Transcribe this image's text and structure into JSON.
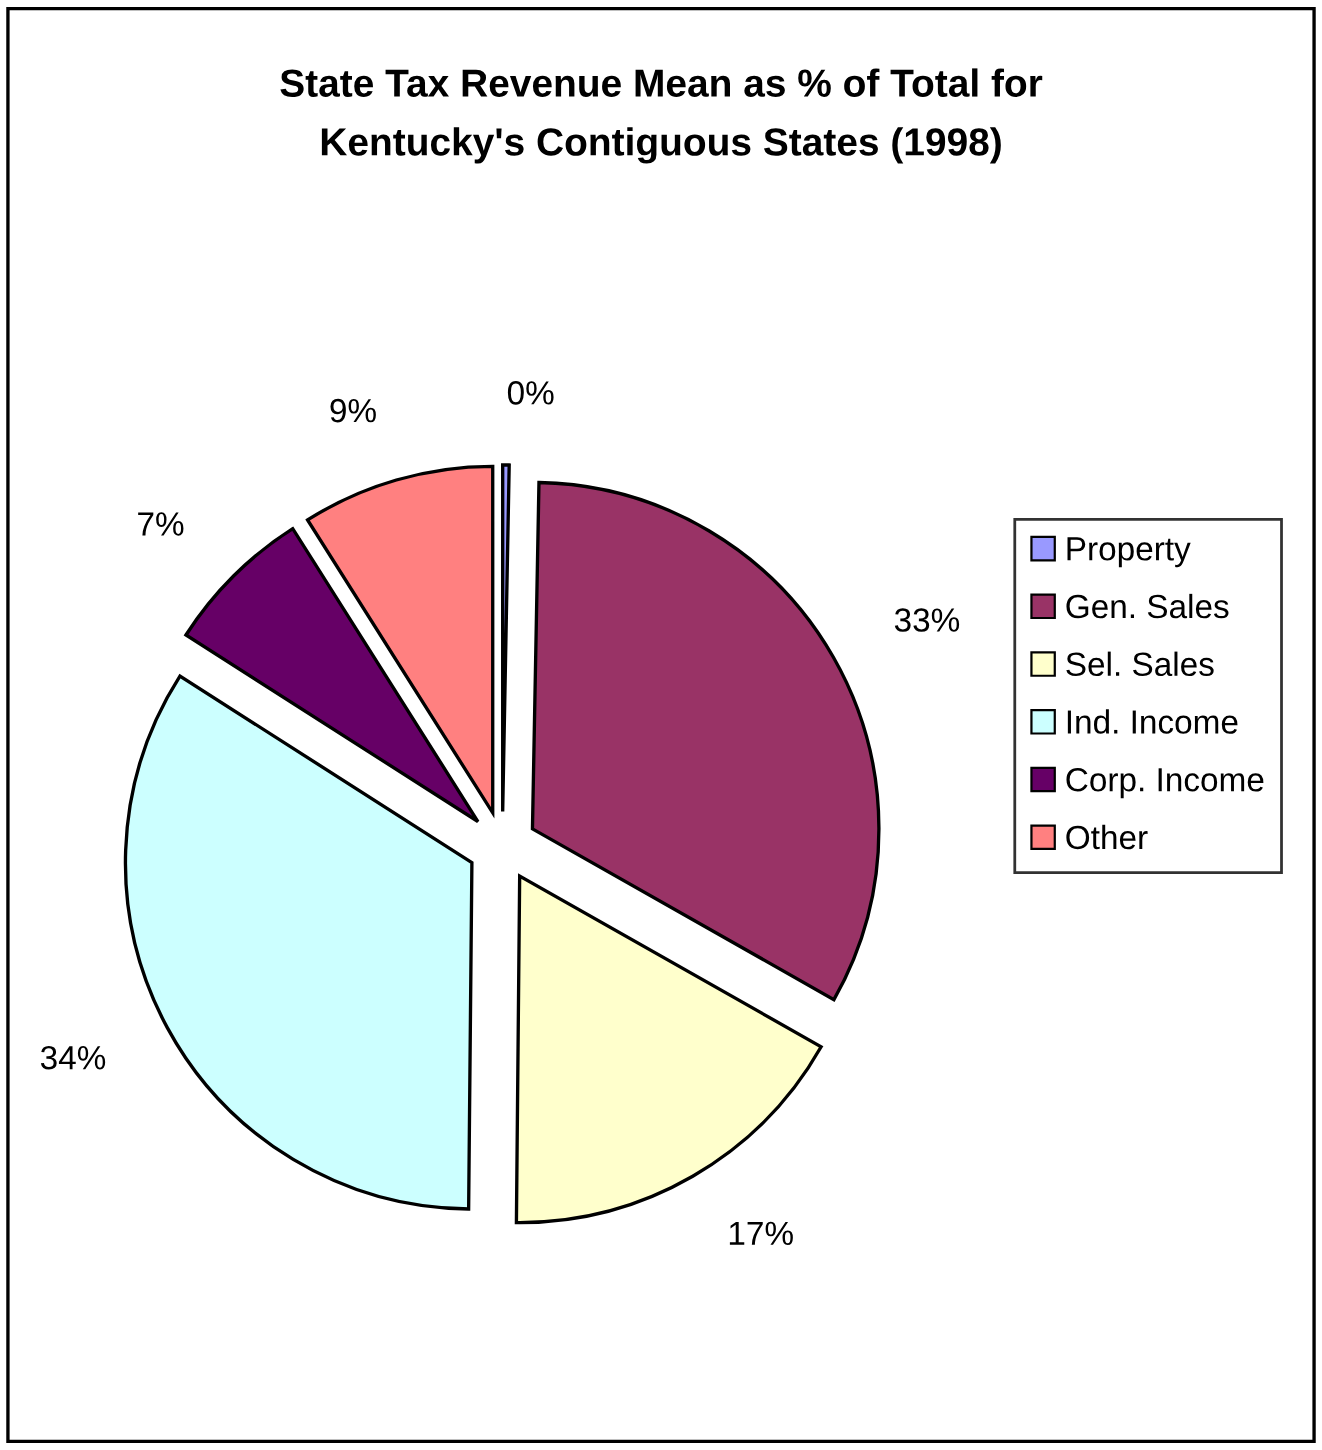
{
  "chart_data": {
    "type": "pie",
    "title": "State Tax Revenue Mean as % of Total for\nKentucky's Contiguous States (1998)",
    "categories": [
      "Property",
      "Gen. Sales",
      "Sel. Sales",
      "Ind. Income",
      "Corp. Income",
      "Other"
    ],
    "values": [
      0.3,
      33,
      17,
      34,
      7,
      9
    ],
    "value_labels": [
      "0%",
      "33%",
      "17%",
      "34%",
      "7%",
      "9%"
    ],
    "colors": [
      "#9999ff",
      "#993366",
      "#ffffcc",
      "#ccffff",
      "#660066",
      "#ff8080"
    ],
    "legend": "right"
  }
}
